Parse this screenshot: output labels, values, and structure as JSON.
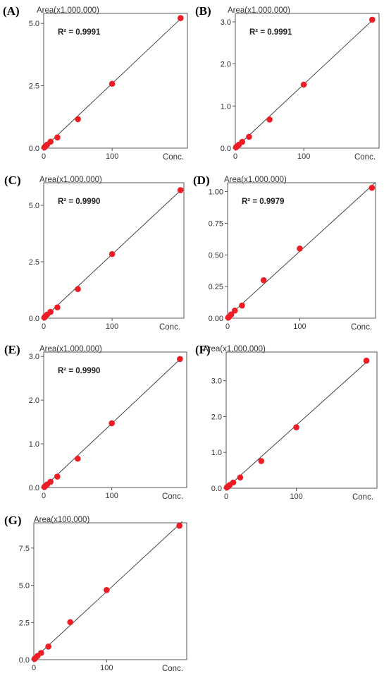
{
  "figure": {
    "x_unit_label": "Conc."
  },
  "chart_data": [
    {
      "panel": "(A)",
      "type": "scatter",
      "ylabel": "Area(x1,000,000)",
      "xlabel": "Conc.",
      "r2": "R² = 0.9991",
      "xlim": [
        0,
        210
      ],
      "ylim": [
        0,
        5.4
      ],
      "xticks": [
        "0",
        "100"
      ],
      "xtick_values": [
        0,
        100
      ],
      "yticks": [
        "0.0",
        "2.5",
        "5.0"
      ],
      "ytick_values": [
        0,
        2.5,
        5.0
      ],
      "x": [
        1,
        2,
        5,
        10,
        20,
        50,
        100,
        200
      ],
      "y": [
        0.03,
        0.06,
        0.14,
        0.26,
        0.43,
        1.16,
        2.58,
        5.21
      ],
      "fit_line": true,
      "marker_color": "#ee1c24"
    },
    {
      "panel": "(B)",
      "type": "scatter",
      "ylabel": "Area(x1,000,000)",
      "xlabel": "Conc.",
      "r2": "R² = 0.9991",
      "xlim": [
        0,
        210
      ],
      "ylim": [
        0,
        3.2
      ],
      "xticks": [
        "0",
        "100"
      ],
      "xtick_values": [
        0,
        100
      ],
      "yticks": [
        "0.0",
        "1.0",
        "2.0",
        "3.0"
      ],
      "ytick_values": [
        0,
        1,
        2,
        3
      ],
      "x": [
        1,
        2,
        5,
        10,
        20,
        50,
        100,
        200
      ],
      "y": [
        0.02,
        0.04,
        0.08,
        0.15,
        0.27,
        0.68,
        1.51,
        3.05
      ],
      "fit_line": true,
      "marker_color": "#ee1c24"
    },
    {
      "panel": "(C)",
      "type": "scatter",
      "ylabel": "Area(x1,000,000)",
      "xlabel": "Conc.",
      "r2": "R² = 0.9990",
      "xlim": [
        0,
        205
      ],
      "ylim": [
        0,
        6.0
      ],
      "xticks": [
        "0",
        "100"
      ],
      "xtick_values": [
        0,
        100
      ],
      "yticks": [
        "0.0",
        "2.5",
        "5.0"
      ],
      "ytick_values": [
        0,
        2.5,
        5.0
      ],
      "x": [
        1,
        2,
        5,
        10,
        20,
        50,
        100,
        200
      ],
      "y": [
        0.03,
        0.07,
        0.16,
        0.28,
        0.48,
        1.29,
        2.84,
        5.67
      ],
      "fit_line": true,
      "marker_color": "#ee1c24"
    },
    {
      "panel": "(D)",
      "type": "scatter",
      "ylabel": "Area(x1,000,000)",
      "xlabel": "Conc.",
      "r2": "R² = 0.9979",
      "xlim": [
        0,
        205
      ],
      "ylim": [
        0,
        1.07
      ],
      "xticks": [
        "0",
        "100"
      ],
      "xtick_values": [
        0,
        100
      ],
      "yticks": [
        "0.00",
        "0.25",
        "0.50",
        "0.75",
        "1.00"
      ],
      "ytick_values": [
        0,
        0.25,
        0.5,
        0.75,
        1.0
      ],
      "x": [
        1,
        2,
        5,
        10,
        20,
        50,
        100,
        200
      ],
      "y": [
        0.005,
        0.01,
        0.03,
        0.06,
        0.1,
        0.3,
        0.55,
        1.03
      ],
      "fit_line": true,
      "marker_color": "#ee1c24"
    },
    {
      "panel": "(E)",
      "type": "scatter",
      "ylabel": "Area(x1,000,000)",
      "xlabel": "Conc.",
      "r2": "R² = 0.9990",
      "xlim": [
        0,
        210
      ],
      "ylim": [
        0,
        3.1
      ],
      "xticks": [
        "0",
        "100"
      ],
      "xtick_values": [
        0,
        100
      ],
      "yticks": [
        "0.0",
        "1.0",
        "2.0",
        "3.0"
      ],
      "ytick_values": [
        0,
        1,
        2,
        3
      ],
      "x": [
        1,
        2,
        5,
        10,
        20,
        50,
        100,
        200
      ],
      "y": [
        0.01,
        0.03,
        0.07,
        0.13,
        0.25,
        0.66,
        1.47,
        2.94
      ],
      "fit_line": true,
      "marker_color": "#ee1c24"
    },
    {
      "panel": "(F)",
      "type": "scatter",
      "ylabel": "Area(x1,000,000)",
      "xlabel": "Conc.",
      "r2": "",
      "xlim": [
        0,
        215
      ],
      "ylim": [
        0,
        3.8
      ],
      "xticks": [
        "0",
        "100"
      ],
      "xtick_values": [
        0,
        100
      ],
      "yticks": [
        "0.0",
        "1.0",
        "2.0",
        "3.0"
      ],
      "ytick_values": [
        0,
        1,
        2,
        3
      ],
      "x": [
        1,
        2,
        5,
        10,
        20,
        50,
        100,
        200
      ],
      "y": [
        0.02,
        0.04,
        0.09,
        0.16,
        0.3,
        0.76,
        1.7,
        3.56
      ],
      "fit_line": true,
      "marker_color": "#ee1c24"
    },
    {
      "panel": "(G)",
      "type": "scatter",
      "ylabel": "Area(x100,000)",
      "xlabel": "Conc.",
      "r2": "",
      "xlim": [
        0,
        210
      ],
      "ylim": [
        0,
        9.2
      ],
      "xticks": [
        "0",
        "100"
      ],
      "xtick_values": [
        0,
        100
      ],
      "yticks": [
        "0.0",
        "2.5",
        "5.0",
        "7.5"
      ],
      "ytick_values": [
        0,
        2.5,
        5.0,
        7.5
      ],
      "x": [
        1,
        2,
        5,
        10,
        20,
        50,
        100,
        200
      ],
      "y": [
        0.05,
        0.1,
        0.25,
        0.45,
        0.88,
        2.52,
        4.68,
        9.0
      ],
      "fit_line": true,
      "marker_color": "#ee1c24"
    }
  ]
}
